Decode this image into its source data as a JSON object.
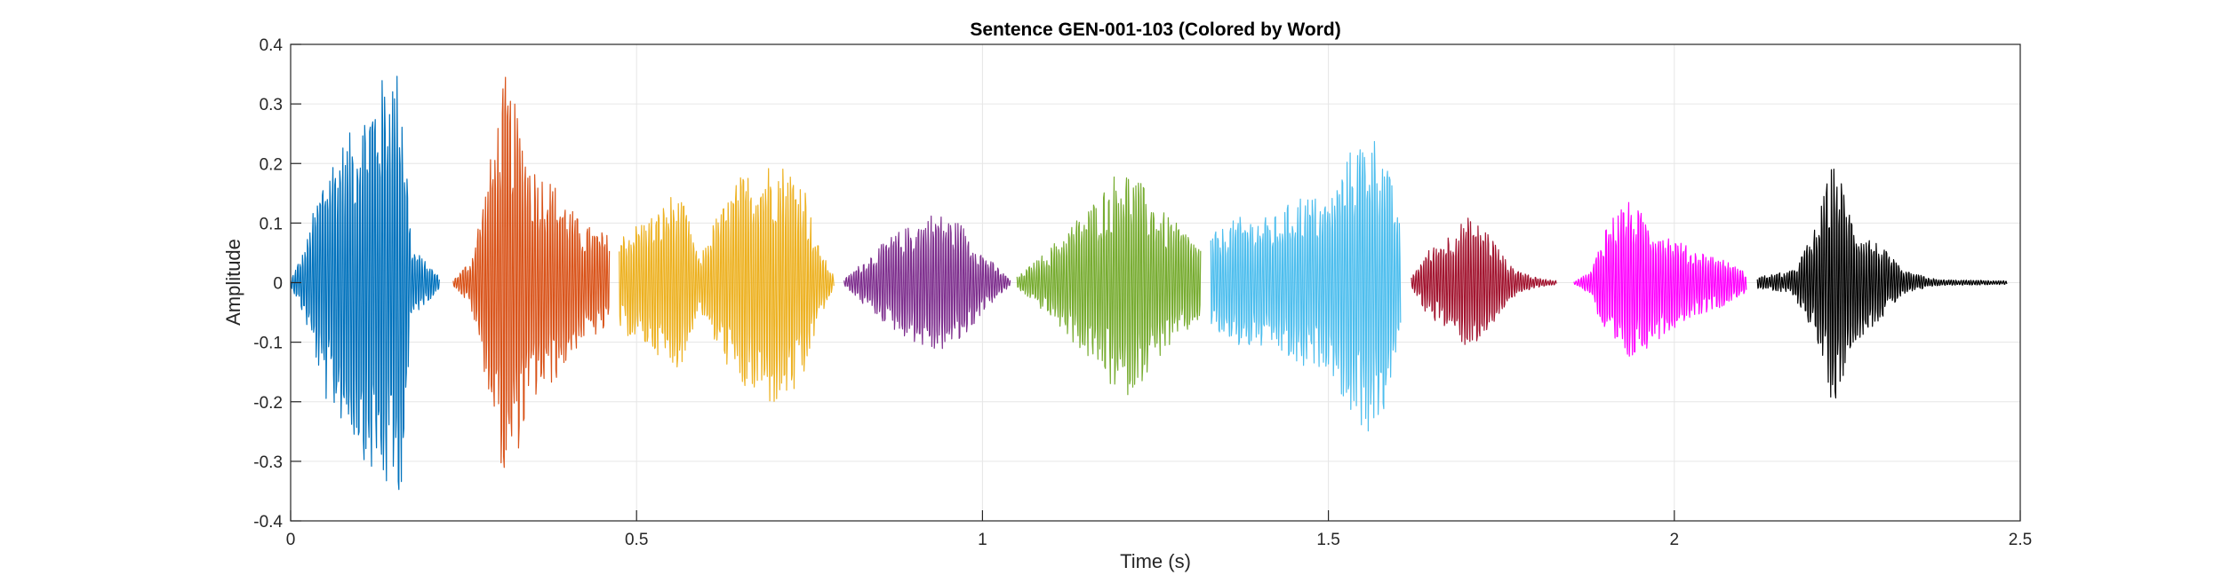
{
  "chart_data": {
    "type": "line",
    "title": "Sentence GEN-001-103 (Colored by Word)",
    "xlabel": "Time (s)",
    "ylabel": "Amplitude",
    "xlim": [
      0,
      2.5
    ],
    "ylim": [
      -0.4,
      0.4
    ],
    "xticks": [
      0,
      0.5,
      1,
      1.5,
      2,
      2.5
    ],
    "xtick_labels": [
      "0",
      "0.5",
      "1",
      "1.5",
      "2",
      "2.5"
    ],
    "yticks": [
      -0.4,
      -0.3,
      -0.2,
      -0.1,
      0,
      0.1,
      0.2,
      0.3,
      0.4
    ],
    "ytick_labels": [
      "-0.4",
      "-0.3",
      "-0.2",
      "-0.1",
      "0",
      "0.1",
      "0.2",
      "0.3",
      "0.4"
    ],
    "grid": true,
    "series": [
      {
        "color": "#0072BD",
        "start": 0.0,
        "end": 0.215,
        "envelope": [
          [
            0.0,
            0.005
          ],
          [
            0.02,
            0.06
          ],
          [
            0.05,
            0.2
          ],
          [
            0.09,
            0.26
          ],
          [
            0.12,
            0.33
          ],
          [
            0.15,
            0.37
          ],
          [
            0.16,
            0.34
          ],
          [
            0.175,
            0.06
          ],
          [
            0.215,
            0.01
          ]
        ]
      },
      {
        "color": "#D95319",
        "start": 0.235,
        "end": 0.46,
        "envelope": [
          [
            0.235,
            0.005
          ],
          [
            0.26,
            0.04
          ],
          [
            0.28,
            0.15
          ],
          [
            0.31,
            0.35
          ],
          [
            0.35,
            0.2
          ],
          [
            0.38,
            0.17
          ],
          [
            0.42,
            0.1
          ],
          [
            0.46,
            0.08
          ]
        ]
      },
      {
        "color": "#EDB120",
        "start": 0.475,
        "end": 0.785,
        "envelope": [
          [
            0.475,
            0.08
          ],
          [
            0.5,
            0.1
          ],
          [
            0.53,
            0.12
          ],
          [
            0.55,
            0.15
          ],
          [
            0.57,
            0.13
          ],
          [
            0.59,
            0.04
          ],
          [
            0.61,
            0.1
          ],
          [
            0.65,
            0.18
          ],
          [
            0.7,
            0.21
          ],
          [
            0.74,
            0.18
          ],
          [
            0.76,
            0.07
          ],
          [
            0.785,
            0.01
          ]
        ]
      },
      {
        "color": "#7E2F8E",
        "start": 0.8,
        "end": 1.04,
        "envelope": [
          [
            0.8,
            0.005
          ],
          [
            0.83,
            0.04
          ],
          [
            0.87,
            0.08
          ],
          [
            0.9,
            0.1
          ],
          [
            0.93,
            0.12
          ],
          [
            0.97,
            0.1
          ],
          [
            1.0,
            0.05
          ],
          [
            1.04,
            0.005
          ]
        ]
      },
      {
        "color": "#77AC30",
        "start": 1.05,
        "end": 1.315,
        "envelope": [
          [
            1.05,
            0.01
          ],
          [
            1.09,
            0.05
          ],
          [
            1.13,
            0.1
          ],
          [
            1.17,
            0.15
          ],
          [
            1.2,
            0.2
          ],
          [
            1.22,
            0.18
          ],
          [
            1.26,
            0.12
          ],
          [
            1.3,
            0.08
          ],
          [
            1.315,
            0.06
          ]
        ]
      },
      {
        "color": "#4DBEEE",
        "start": 1.33,
        "end": 1.605,
        "envelope": [
          [
            1.33,
            0.08
          ],
          [
            1.37,
            0.11
          ],
          [
            1.42,
            0.11
          ],
          [
            1.46,
            0.15
          ],
          [
            1.5,
            0.14
          ],
          [
            1.53,
            0.22
          ],
          [
            1.56,
            0.26
          ],
          [
            1.58,
            0.22
          ],
          [
            1.6,
            0.12
          ],
          [
            1.605,
            0.06
          ]
        ]
      },
      {
        "color": "#A2142F",
        "start": 1.62,
        "end": 1.83,
        "envelope": [
          [
            1.62,
            0.01
          ],
          [
            1.64,
            0.05
          ],
          [
            1.67,
            0.08
          ],
          [
            1.7,
            0.11
          ],
          [
            1.73,
            0.09
          ],
          [
            1.76,
            0.03
          ],
          [
            1.8,
            0.008
          ],
          [
            1.83,
            0.003
          ]
        ]
      },
      {
        "color": "#FF00FF",
        "start": 1.855,
        "end": 2.105,
        "envelope": [
          [
            1.855,
            0.003
          ],
          [
            1.88,
            0.02
          ],
          [
            1.9,
            0.1
          ],
          [
            1.93,
            0.14
          ],
          [
            1.97,
            0.1
          ],
          [
            2.02,
            0.06
          ],
          [
            2.07,
            0.04
          ],
          [
            2.105,
            0.015
          ]
        ]
      },
      {
        "color": "#000000",
        "start": 2.12,
        "end": 2.48,
        "envelope": [
          [
            2.12,
            0.01
          ],
          [
            2.17,
            0.02
          ],
          [
            2.2,
            0.08
          ],
          [
            2.23,
            0.21
          ],
          [
            2.26,
            0.1
          ],
          [
            2.3,
            0.06
          ],
          [
            2.33,
            0.02
          ],
          [
            2.38,
            0.005
          ],
          [
            2.48,
            0.003
          ]
        ]
      }
    ]
  }
}
